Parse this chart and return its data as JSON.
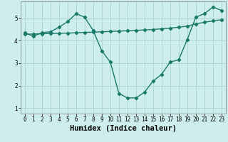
{
  "xlabel": "Humidex (Indice chaleur)",
  "bg_color": "#ceeeed",
  "grid_color": "#aad8d5",
  "line_color": "#1a7a6a",
  "curve_x": [
    0,
    1,
    2,
    3,
    4,
    5,
    6,
    7,
    8,
    9,
    10,
    11,
    12,
    13,
    14,
    15,
    16,
    17,
    18,
    19,
    20,
    21,
    22,
    23
  ],
  "curve_y": [
    4.35,
    4.2,
    4.35,
    4.4,
    4.6,
    4.85,
    5.2,
    5.05,
    4.45,
    3.55,
    3.05,
    1.65,
    1.45,
    1.45,
    1.7,
    2.2,
    2.5,
    3.05,
    3.15,
    4.05,
    5.05,
    5.2,
    5.5,
    5.35
  ],
  "line_x": [
    0,
    1,
    2,
    3,
    4,
    5,
    6,
    7,
    8,
    9,
    10,
    11,
    12,
    13,
    14,
    15,
    16,
    17,
    18,
    19,
    20,
    21,
    22,
    23
  ],
  "line_y": [
    4.28,
    4.3,
    4.31,
    4.32,
    4.33,
    4.34,
    4.35,
    4.37,
    4.38,
    4.4,
    4.41,
    4.43,
    4.44,
    4.46,
    4.48,
    4.5,
    4.53,
    4.56,
    4.6,
    4.65,
    4.75,
    4.82,
    4.88,
    4.93
  ],
  "xlim": [
    -0.5,
    23.5
  ],
  "ylim": [
    0.75,
    5.75
  ],
  "xticks": [
    0,
    1,
    2,
    3,
    4,
    5,
    6,
    7,
    8,
    9,
    10,
    11,
    12,
    13,
    14,
    15,
    16,
    17,
    18,
    19,
    20,
    21,
    22,
    23
  ],
  "yticks": [
    1,
    2,
    3,
    4,
    5
  ],
  "tick_fontsize": 5.5,
  "xlabel_fontsize": 7.5,
  "marker": "D",
  "marker_size": 2.2,
  "line_width": 1.0
}
